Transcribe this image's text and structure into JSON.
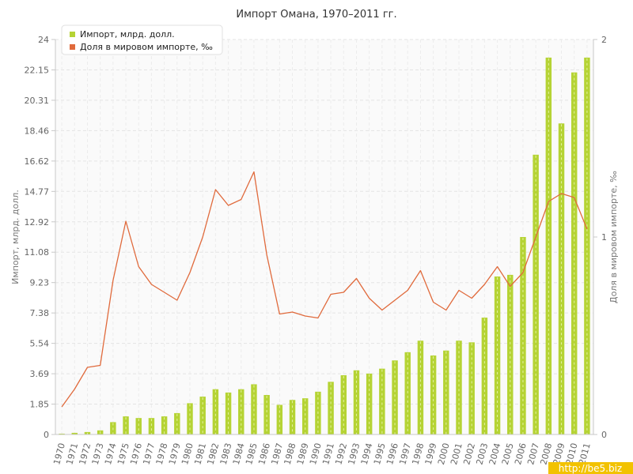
{
  "chart_data": {
    "type": "bar",
    "title": "Импорт Омана, 1970–2011 гг.",
    "ylabel": "Импорт, млрд. долл.",
    "y2label": "Доля в мировом импорте, ‰",
    "ylim": [
      0,
      24
    ],
    "y2lim": [
      0,
      2
    ],
    "y_ticks": [
      "0",
      "1.85",
      "3.69",
      "5.54",
      "7.38",
      "9.23",
      "11.08",
      "12.92",
      "14.77",
      "16.62",
      "18.46",
      "20.31",
      "22.15",
      "24"
    ],
    "y2_ticks": [
      "0",
      "1",
      "2"
    ],
    "grid": true,
    "legend_position": "top-left",
    "categories": [
      "1970",
      "1971",
      "1972",
      "1973",
      "1974",
      "1975",
      "1976",
      "1977",
      "1978",
      "1979",
      "1980",
      "1981",
      "1982",
      "1983",
      "1984",
      "1985",
      "1986",
      "1987",
      "1988",
      "1989",
      "1990",
      "1991",
      "1992",
      "1993",
      "1994",
      "1995",
      "1996",
      "1997",
      "1998",
      "1999",
      "2000",
      "2001",
      "2002",
      "2003",
      "2004",
      "2005",
      "2006",
      "2007",
      "2008",
      "2009",
      "2010",
      "2011"
    ],
    "series": [
      {
        "name": "Импорт, млрд. долл.",
        "type": "bar",
        "axis": "left",
        "color": "#b5d334",
        "values": [
          0.05,
          0.1,
          0.15,
          0.25,
          0.75,
          1.1,
          1.0,
          1.0,
          1.1,
          1.3,
          1.9,
          2.3,
          2.75,
          2.55,
          2.75,
          3.05,
          2.4,
          1.8,
          2.1,
          2.2,
          2.6,
          3.2,
          3.6,
          3.9,
          3.7,
          4.0,
          4.5,
          5.0,
          5.7,
          4.8,
          5.1,
          5.7,
          5.6,
          7.1,
          9.6,
          9.7,
          12.0,
          17.0,
          22.9,
          18.9,
          22.0,
          22.9
        ]
      },
      {
        "name": "Доля в мировом импорте, ‰",
        "type": "line",
        "axis": "right",
        "color": "#e06a3c",
        "values": [
          0.14,
          0.23,
          0.34,
          0.35,
          0.78,
          1.08,
          0.85,
          0.76,
          0.72,
          0.68,
          0.82,
          1.0,
          1.24,
          1.16,
          1.19,
          1.33,
          0.91,
          0.61,
          0.62,
          0.6,
          0.59,
          0.71,
          0.72,
          0.79,
          0.69,
          0.63,
          0.68,
          0.73,
          0.83,
          0.67,
          0.63,
          0.73,
          0.69,
          0.76,
          0.85,
          0.75,
          0.82,
          1.0,
          1.18,
          1.22,
          1.2,
          1.04
        ]
      }
    ]
  },
  "watermark": "http://be5.biz"
}
